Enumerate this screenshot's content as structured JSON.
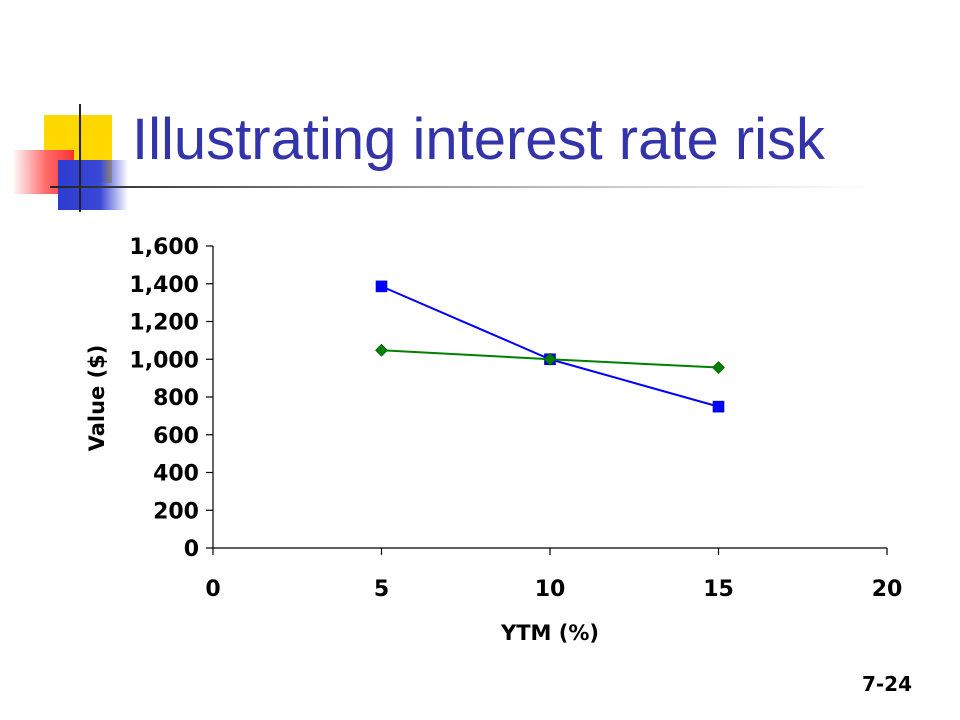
{
  "slide": {
    "title": "Illustrating interest rate risk",
    "number": "7-24"
  },
  "chart_data": {
    "type": "scatter",
    "title": "",
    "xlabel": "YTM (%)",
    "ylabel": "Value ($)",
    "xlim": [
      0,
      20
    ],
    "ylim": [
      0,
      1600
    ],
    "xticks": [
      0,
      5,
      10,
      15,
      20
    ],
    "xtick_labels": [
      "0",
      "5",
      "10",
      "15",
      "20"
    ],
    "yticks": [
      0,
      200,
      400,
      600,
      800,
      1000,
      1200,
      1400,
      1600
    ],
    "ytick_labels": [
      "0",
      "200",
      "400",
      "600",
      "800",
      "1,000",
      "1,200",
      "1,400",
      "1,600"
    ],
    "grid": false,
    "legend": "none",
    "series": [
      {
        "color": "#0000ff",
        "marker": "square",
        "x": [
          5,
          10,
          15
        ],
        "y": [
          1386,
          1000,
          749
        ]
      },
      {
        "color": "#008000",
        "marker": "diamond",
        "x": [
          5,
          10,
          15
        ],
        "y": [
          1048,
          1000,
          956
        ]
      }
    ]
  }
}
